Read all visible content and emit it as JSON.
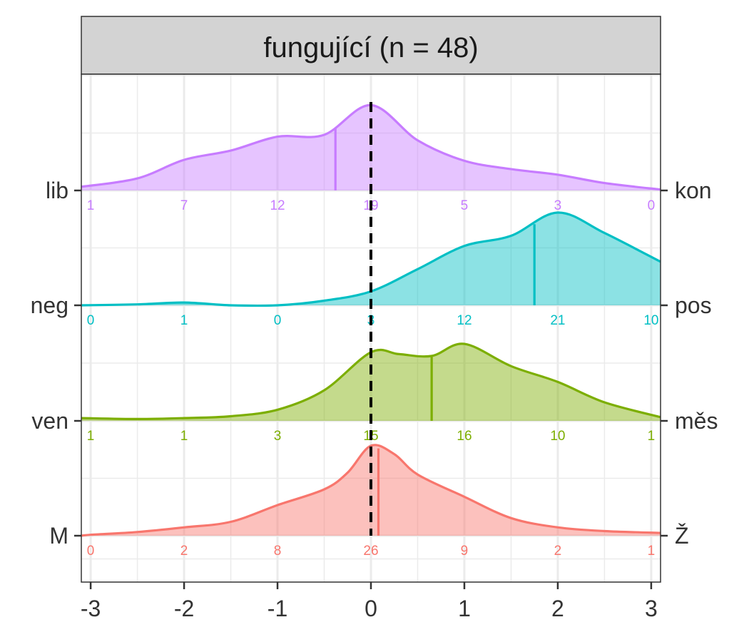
{
  "chart_data": {
    "type": "ridgeline",
    "facet_title": "fungující (n = 48)",
    "xlim": [
      -3.1,
      3.1
    ],
    "x_ticks": [
      -3,
      -2,
      -1,
      0,
      1,
      2,
      3
    ],
    "x_tick_labels": [
      "-3",
      "-2",
      "-1",
      "0",
      "1",
      "2",
      "3"
    ],
    "grid": true,
    "reference_line_x": 0,
    "series": [
      {
        "left_label": "M",
        "right_label": "Ž",
        "color": "#F8766D",
        "mean": 0.08,
        "counts": [
          "0",
          "2",
          "8",
          "26",
          "9",
          "2",
          "1"
        ],
        "density": [
          [
            -3.1,
            0.0
          ],
          [
            -3.0,
            0.01
          ],
          [
            -2.5,
            0.04
          ],
          [
            -2.0,
            0.09
          ],
          [
            -1.5,
            0.15
          ],
          [
            -1.0,
            0.33
          ],
          [
            -0.5,
            0.5
          ],
          [
            -0.25,
            0.68
          ],
          [
            0.0,
            0.97
          ],
          [
            0.25,
            0.88
          ],
          [
            0.5,
            0.66
          ],
          [
            1.0,
            0.42
          ],
          [
            1.5,
            0.19
          ],
          [
            2.0,
            0.09
          ],
          [
            2.5,
            0.05
          ],
          [
            3.1,
            0.03
          ]
        ]
      },
      {
        "left_label": "ven",
        "right_label": "měs",
        "color": "#7CAE00",
        "mean": 0.65,
        "counts": [
          "1",
          "1",
          "3",
          "15",
          "16",
          "10",
          "1"
        ],
        "density": [
          [
            -3.1,
            0.03
          ],
          [
            -2.5,
            0.02
          ],
          [
            -2.0,
            0.03
          ],
          [
            -1.5,
            0.05
          ],
          [
            -1.0,
            0.12
          ],
          [
            -0.5,
            0.33
          ],
          [
            0.0,
            0.74
          ],
          [
            0.3,
            0.72
          ],
          [
            0.65,
            0.7
          ],
          [
            1.0,
            0.83
          ],
          [
            1.5,
            0.59
          ],
          [
            2.0,
            0.42
          ],
          [
            2.5,
            0.2
          ],
          [
            3.1,
            0.04
          ]
        ]
      },
      {
        "left_label": "neg",
        "right_label": "pos",
        "color": "#00BFC4",
        "mean": 1.75,
        "counts": [
          "0",
          "1",
          "0",
          "3",
          "12",
          "21",
          "10"
        ],
        "density": [
          [
            -3.1,
            0.0
          ],
          [
            -2.5,
            0.01
          ],
          [
            -2.0,
            0.03
          ],
          [
            -1.5,
            0.0
          ],
          [
            -1.0,
            0.0
          ],
          [
            -0.5,
            0.05
          ],
          [
            0.0,
            0.15
          ],
          [
            0.5,
            0.39
          ],
          [
            1.0,
            0.64
          ],
          [
            1.5,
            0.75
          ],
          [
            2.0,
            1.0
          ],
          [
            2.5,
            0.78
          ],
          [
            3.1,
            0.47
          ]
        ]
      },
      {
        "left_label": "lib",
        "right_label": "kon",
        "color": "#C77CFF",
        "mean": -0.38,
        "counts": [
          "1",
          "7",
          "12",
          "19",
          "5",
          "3",
          "0"
        ],
        "density": [
          [
            -3.1,
            0.04
          ],
          [
            -2.5,
            0.13
          ],
          [
            -2.0,
            0.33
          ],
          [
            -1.5,
            0.43
          ],
          [
            -1.0,
            0.58
          ],
          [
            -0.5,
            0.6
          ],
          [
            0.0,
            0.92
          ],
          [
            0.5,
            0.54
          ],
          [
            1.0,
            0.32
          ],
          [
            1.5,
            0.23
          ],
          [
            2.0,
            0.17
          ],
          [
            2.5,
            0.08
          ],
          [
            3.1,
            0.01
          ]
        ]
      }
    ]
  }
}
